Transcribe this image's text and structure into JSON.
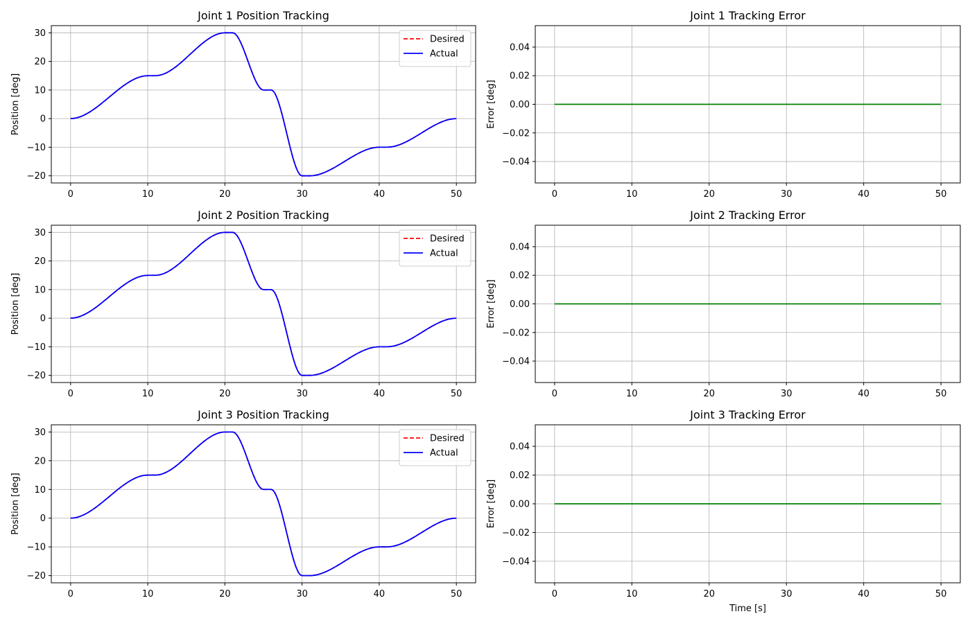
{
  "chart_data": [
    {
      "type": "line",
      "title": "Joint 1 Position Tracking",
      "xlabel": "",
      "ylabel": "Position [deg]",
      "xlim": [
        -2.5,
        52.5
      ],
      "ylim": [
        -22.5,
        32.5
      ],
      "xticks": [
        0,
        10,
        20,
        30,
        40,
        50
      ],
      "yticks": [
        -20,
        -10,
        0,
        10,
        20,
        30
      ],
      "grid": true,
      "legend": "top-right",
      "colors": {
        "desired": "#ff0000",
        "actual": "#0000ff"
      },
      "series": [
        {
          "name": "Desired",
          "style": "dashed",
          "color": "#ff0000",
          "x": [
            0,
            10,
            11,
            20,
            21,
            25,
            26,
            30,
            31,
            40,
            41,
            50
          ],
          "y": [
            0,
            15,
            15,
            30,
            30,
            10,
            10,
            -20,
            -20,
            -10,
            -10,
            0
          ]
        },
        {
          "name": "Actual",
          "style": "solid",
          "color": "#0000ff",
          "x": [
            0,
            10,
            11,
            20,
            21,
            25,
            26,
            30,
            31,
            40,
            41,
            50
          ],
          "y": [
            0,
            15,
            15,
            30,
            30,
            10,
            10,
            -20,
            -20,
            -10,
            -10,
            0
          ]
        }
      ]
    },
    {
      "type": "line",
      "title": "Joint 1 Tracking Error",
      "xlabel": "",
      "ylabel": "Error [deg]",
      "xlim": [
        -2.5,
        52.5
      ],
      "ylim": [
        -0.055,
        0.055
      ],
      "xticks": [
        0,
        10,
        20,
        30,
        40,
        50
      ],
      "yticks": [
        -0.04,
        -0.02,
        0.0,
        0.02,
        0.04
      ],
      "grid": true,
      "colors": {
        "error": "#008000"
      },
      "series": [
        {
          "style": "solid",
          "color": "#008000",
          "x": [
            0,
            50
          ],
          "y": [
            0,
            0
          ]
        }
      ]
    },
    {
      "type": "line",
      "title": "Joint 2 Position Tracking",
      "xlabel": "",
      "ylabel": "Position [deg]",
      "xlim": [
        -2.5,
        52.5
      ],
      "ylim": [
        -22.5,
        32.5
      ],
      "xticks": [
        0,
        10,
        20,
        30,
        40,
        50
      ],
      "yticks": [
        -20,
        -10,
        0,
        10,
        20,
        30
      ],
      "grid": true,
      "legend": "top-right",
      "colors": {
        "desired": "#ff0000",
        "actual": "#0000ff"
      },
      "series": [
        {
          "name": "Desired",
          "style": "dashed",
          "color": "#ff0000",
          "x": [
            0,
            10,
            11,
            20,
            21,
            25,
            26,
            30,
            31,
            40,
            41,
            50
          ],
          "y": [
            0,
            15,
            15,
            30,
            30,
            10,
            10,
            -20,
            -20,
            -10,
            -10,
            0
          ]
        },
        {
          "name": "Actual",
          "style": "solid",
          "color": "#0000ff",
          "x": [
            0,
            10,
            11,
            20,
            21,
            25,
            26,
            30,
            31,
            40,
            41,
            50
          ],
          "y": [
            0,
            15,
            15,
            30,
            30,
            10,
            10,
            -20,
            -20,
            -10,
            -10,
            0
          ]
        }
      ]
    },
    {
      "type": "line",
      "title": "Joint 2 Tracking Error",
      "xlabel": "",
      "ylabel": "Error [deg]",
      "xlim": [
        -2.5,
        52.5
      ],
      "ylim": [
        -0.055,
        0.055
      ],
      "xticks": [
        0,
        10,
        20,
        30,
        40,
        50
      ],
      "yticks": [
        -0.04,
        -0.02,
        0.0,
        0.02,
        0.04
      ],
      "grid": true,
      "colors": {
        "error": "#008000"
      },
      "series": [
        {
          "style": "solid",
          "color": "#008000",
          "x": [
            0,
            50
          ],
          "y": [
            0,
            0
          ]
        }
      ]
    },
    {
      "type": "line",
      "title": "Joint 3 Position Tracking",
      "xlabel": "",
      "ylabel": "Position [deg]",
      "xlim": [
        -2.5,
        52.5
      ],
      "ylim": [
        -22.5,
        32.5
      ],
      "xticks": [
        0,
        10,
        20,
        30,
        40,
        50
      ],
      "yticks": [
        -20,
        -10,
        0,
        10,
        20,
        30
      ],
      "grid": true,
      "legend": "top-right",
      "colors": {
        "desired": "#ff0000",
        "actual": "#0000ff"
      },
      "series": [
        {
          "name": "Desired",
          "style": "dashed",
          "color": "#ff0000",
          "x": [
            0,
            10,
            11,
            20,
            21,
            25,
            26,
            30,
            31,
            40,
            41,
            50
          ],
          "y": [
            0,
            15,
            15,
            30,
            30,
            10,
            10,
            -20,
            -20,
            -10,
            -10,
            0
          ]
        },
        {
          "name": "Actual",
          "style": "solid",
          "color": "#0000ff",
          "x": [
            0,
            10,
            11,
            20,
            21,
            25,
            26,
            30,
            31,
            40,
            41,
            50
          ],
          "y": [
            0,
            15,
            15,
            30,
            30,
            10,
            10,
            -20,
            -20,
            -10,
            -10,
            0
          ]
        }
      ]
    },
    {
      "type": "line",
      "title": "Joint 3 Tracking Error",
      "xlabel": "Time [s]",
      "ylabel": "Error [deg]",
      "xlim": [
        -2.5,
        52.5
      ],
      "ylim": [
        -0.055,
        0.055
      ],
      "xticks": [
        0,
        10,
        20,
        30,
        40,
        50
      ],
      "yticks": [
        -0.04,
        -0.02,
        0.0,
        0.02,
        0.04
      ],
      "grid": true,
      "colors": {
        "error": "#008000"
      },
      "series": [
        {
          "style": "solid",
          "color": "#008000",
          "x": [
            0,
            50
          ],
          "y": [
            0,
            0
          ]
        }
      ]
    }
  ]
}
